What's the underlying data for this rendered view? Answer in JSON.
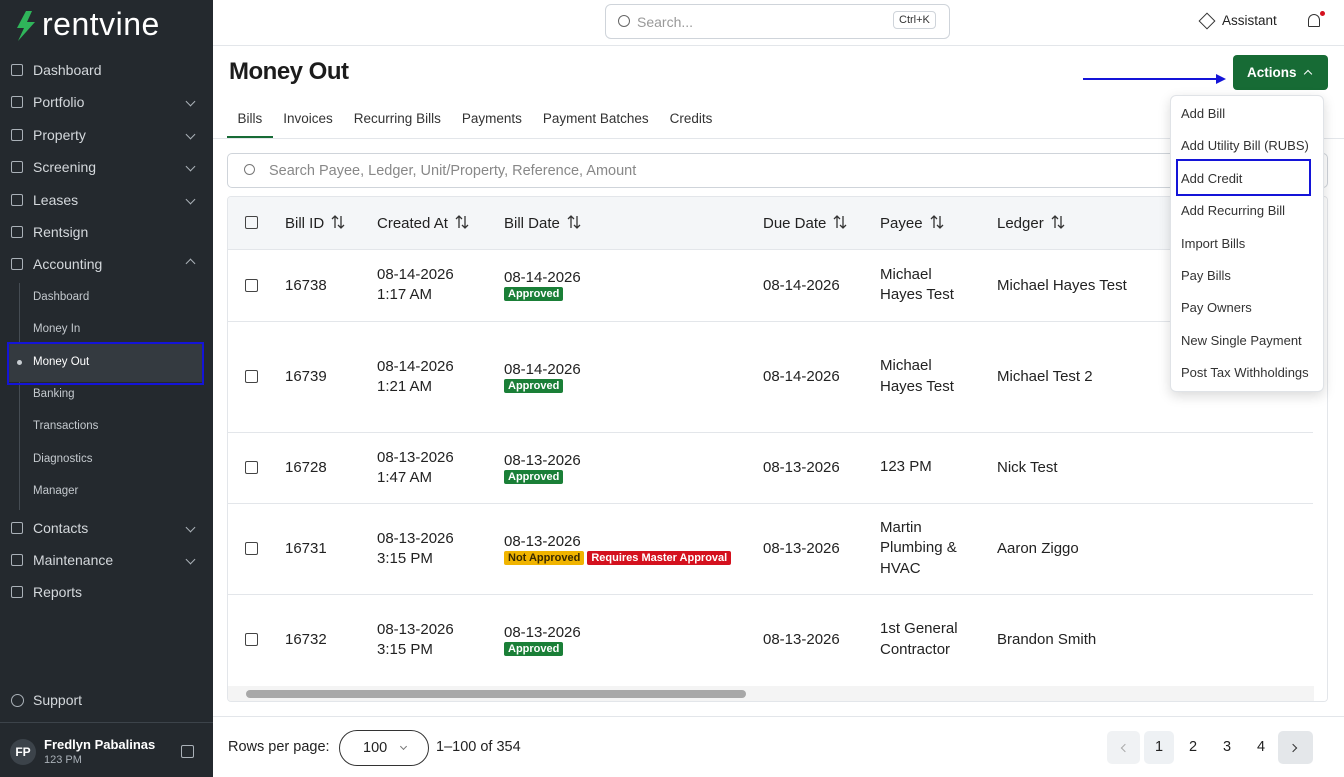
{
  "logo": "rentvine",
  "search": {
    "placeholder": "Search...",
    "shortcut": "Ctrl+K"
  },
  "assistant": "Assistant",
  "sidebar": {
    "nav": [
      {
        "label": "Dashboard"
      },
      {
        "label": "Portfolio",
        "has_menu": true
      },
      {
        "label": "Property",
        "has_menu": true
      },
      {
        "label": "Screening",
        "has_menu": true
      },
      {
        "label": "Leases",
        "has_menu": true
      },
      {
        "label": "Rentsign"
      },
      {
        "label": "Accounting",
        "has_menu": true,
        "expanded": true,
        "children": [
          {
            "label": "Dashboard"
          },
          {
            "label": "Money In"
          },
          {
            "label": "Money Out",
            "active": true
          },
          {
            "label": "Banking"
          },
          {
            "label": "Transactions"
          },
          {
            "label": "Diagnostics"
          },
          {
            "label": "Manager"
          }
        ]
      },
      {
        "label": "Contacts",
        "has_menu": true
      },
      {
        "label": "Maintenance",
        "has_menu": true
      },
      {
        "label": "Reports"
      }
    ],
    "support": "Support",
    "user": {
      "initials": "FP",
      "name": "Fredlyn Pabalinas",
      "subtitle": "123 PM"
    }
  },
  "page": {
    "title": "Money Out",
    "actions": "Actions",
    "tabs": [
      {
        "label": "Bills",
        "selected": true
      },
      {
        "label": "Invoices"
      },
      {
        "label": "Recurring Bills"
      },
      {
        "label": "Payments"
      },
      {
        "label": "Payment Batches"
      },
      {
        "label": "Credits"
      }
    ],
    "table_search": "Search Payee, Ledger, Unit/Property, Reference, Amount"
  },
  "table": {
    "columns": [
      "Bill ID",
      "Created At",
      "Bill Date",
      "Due Date",
      "Payee",
      "Ledger"
    ],
    "rows": [
      {
        "bill_id": "16738",
        "created_date": "08-14-2026",
        "created_time": "1:17 AM",
        "bill_date": "08-14-2026",
        "badges": [
          {
            "text": "Approved",
            "color": "#1a7f37"
          }
        ],
        "due_date": "08-14-2026",
        "payee": "Michael Hayes Test",
        "ledger": "Michael Hayes Test"
      },
      {
        "bill_id": "16739",
        "created_date": "08-14-2026",
        "created_time": "1:21 AM",
        "bill_date": "08-14-2026",
        "badges": [
          {
            "text": "Approved",
            "color": "#1a7f37"
          }
        ],
        "due_date": "08-14-2026",
        "payee": "Michael Hayes Test",
        "ledger": "Michael Test 2"
      },
      {
        "bill_id": "16728",
        "created_date": "08-13-2026",
        "created_time": "1:47 AM",
        "bill_date": "08-13-2026",
        "badges": [
          {
            "text": "Approved",
            "color": "#1a7f37"
          }
        ],
        "due_date": "08-13-2026",
        "payee": "123 PM",
        "ledger": "Nick Test"
      },
      {
        "bill_id": "16731",
        "created_date": "08-13-2026",
        "created_time": "3:15 PM",
        "bill_date": "08-13-2026",
        "badges": [
          {
            "text": "Not Approved",
            "color": "#f0b400",
            "text_color": "#3a2a00"
          },
          {
            "text": "Requires Master Approval",
            "color": "#d4111e"
          }
        ],
        "due_date": "08-13-2026",
        "payee": "Martin Plumbing & HVAC",
        "ledger": "Aaron Ziggo"
      },
      {
        "bill_id": "16732",
        "created_date": "08-13-2026",
        "created_time": "3:15 PM",
        "bill_date": "08-13-2026",
        "badges": [
          {
            "text": "Approved",
            "color": "#1a7f37"
          }
        ],
        "due_date": "08-13-2026",
        "payee": "1st General Contractor",
        "ledger": "Brandon Smith"
      }
    ]
  },
  "actions_menu": [
    "Add Bill",
    "Add Utility Bill (RUBS)",
    "Add Credit",
    "Add Recurring Bill",
    "Import Bills",
    "Pay Bills",
    "Pay Owners",
    "New Single Payment",
    "Post Tax Withholdings"
  ],
  "footer": {
    "rows_per_page_label": "Rows per page:",
    "rows_per_page": "100",
    "range": "1–100 of 354",
    "pages": [
      {
        "label": "1",
        "selected": true
      },
      {
        "label": "2"
      },
      {
        "label": "3"
      },
      {
        "label": "4"
      }
    ]
  }
}
